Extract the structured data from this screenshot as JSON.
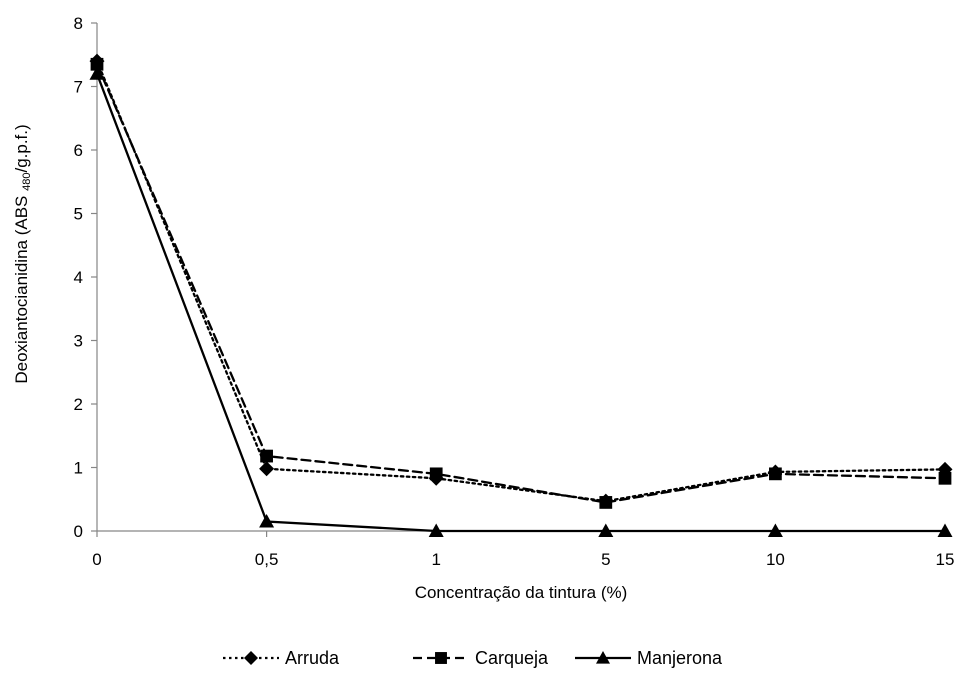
{
  "chart_data": {
    "type": "line",
    "title": "",
    "xlabel": "Concentração da tintura (%)",
    "ylabel": {
      "before": "Deoxiantocianidina (ABS ",
      "subscript": "480",
      "after": "/g.p.f.)"
    },
    "categories": [
      "0",
      "0,5",
      "1",
      "5",
      "10",
      "15"
    ],
    "ylim": [
      0,
      8
    ],
    "yticks": [
      "0",
      "1",
      "2",
      "3",
      "4",
      "5",
      "6",
      "7",
      "8"
    ],
    "grid": false,
    "legend_position": "bottom",
    "series": [
      {
        "name": "Arruda",
        "values": [
          7.4,
          0.98,
          0.83,
          0.47,
          0.93,
          0.97
        ],
        "marker": "diamond",
        "line_style": "dotted",
        "color": "#000000"
      },
      {
        "name": "Carqueja",
        "values": [
          7.35,
          1.18,
          0.9,
          0.45,
          0.9,
          0.83
        ],
        "marker": "square",
        "line_style": "dashed",
        "color": "#000000"
      },
      {
        "name": "Manjerona",
        "values": [
          7.2,
          0.15,
          0.0,
          0.0,
          0.0,
          0.0
        ],
        "marker": "triangle",
        "line_style": "solid",
        "color": "#000000"
      }
    ]
  }
}
